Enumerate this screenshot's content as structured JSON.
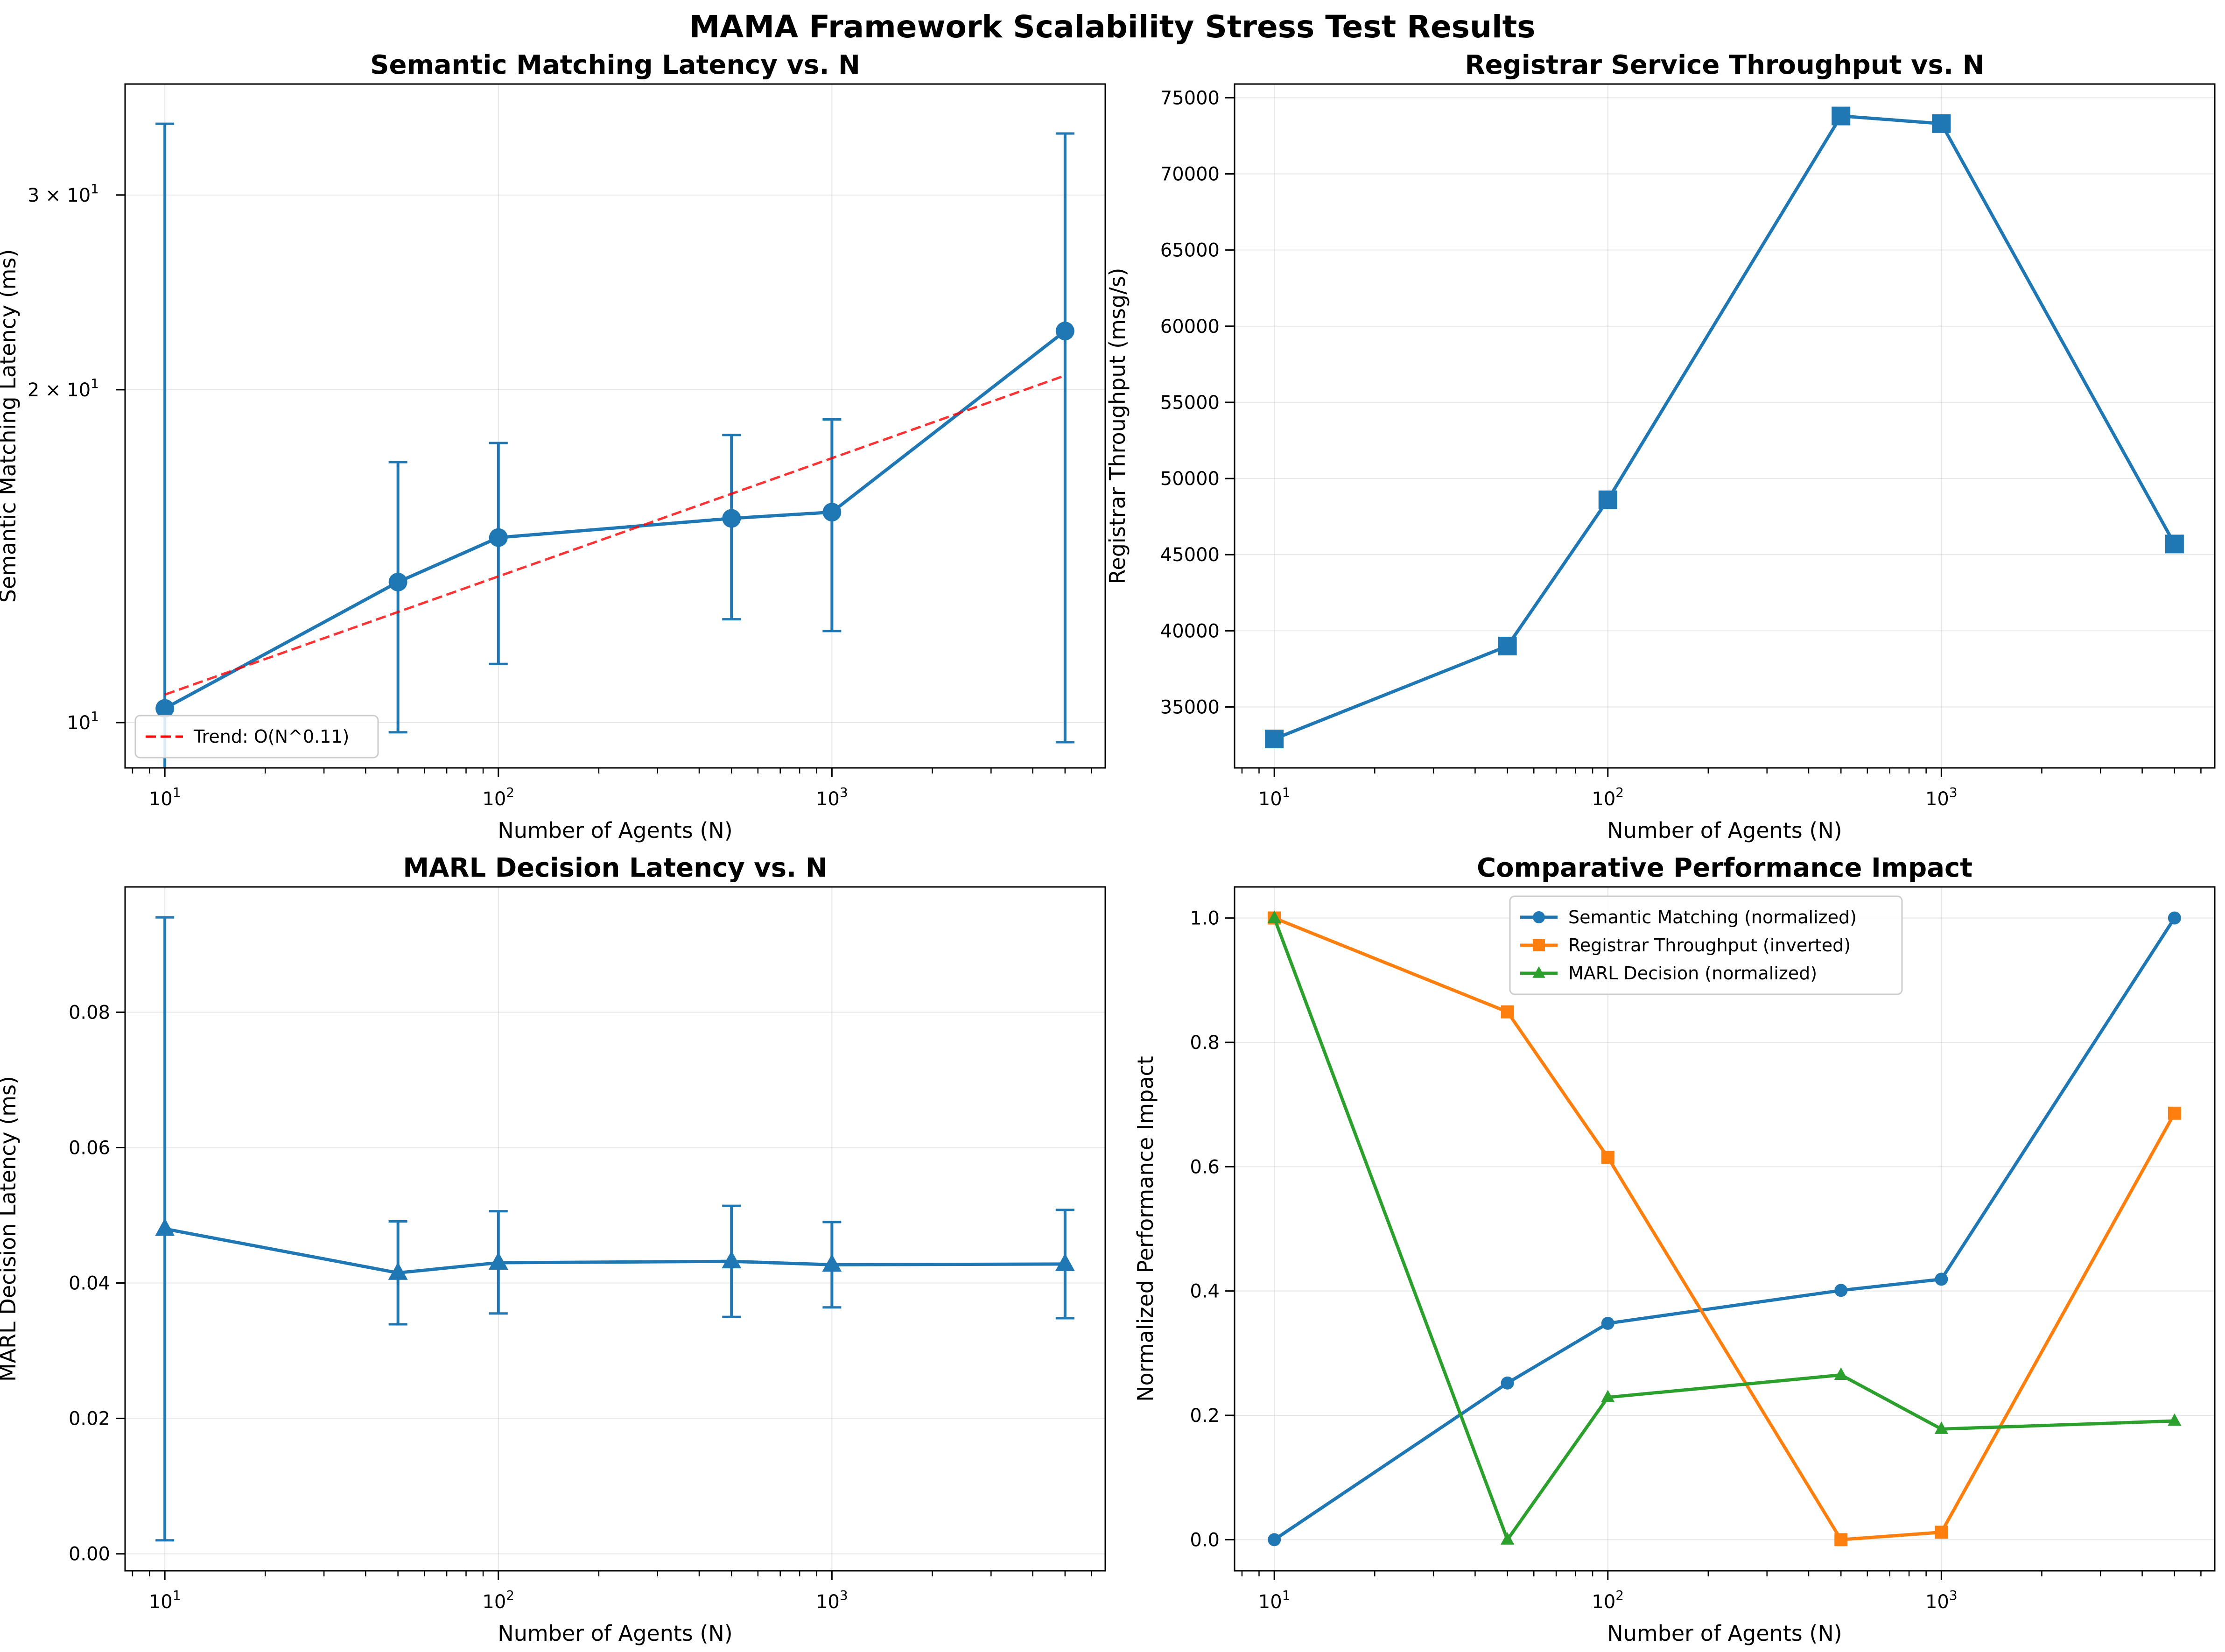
{
  "figure_title": "MAMA Framework Scalability Stress Test Results",
  "chart_data": [
    {
      "id": "p1",
      "type": "line",
      "title": "Semantic Matching Latency vs. N",
      "xlabel": "Number of Agents (N)",
      "ylabel": "Semantic Matching Latency (ms)",
      "xscale": "log",
      "yscale": "log",
      "xlim": [
        7.6,
        6600
      ],
      "ylim": [
        9.1,
        37.8
      ],
      "grid": true,
      "x": [
        10,
        50,
        100,
        500,
        1000,
        5000
      ],
      "series": [
        {
          "name": "",
          "color": "#1f77b4",
          "marker": "circle",
          "values": [
            10.3,
            13.4,
            14.7,
            15.3,
            15.5,
            22.6
          ],
          "err_low": [
            8.7,
            9.8,
            11.3,
            12.4,
            12.1,
            9.6
          ],
          "err_high": [
            34.8,
            17.2,
            17.9,
            18.2,
            18.8,
            34.1
          ]
        },
        {
          "name": "Trend: O(N^0.11)",
          "color": "#ff0000",
          "style": "dashed",
          "x": [
            10,
            5000
          ],
          "values": [
            10.6,
            20.6
          ]
        }
      ],
      "xticks": [
        {
          "v": 10,
          "label": "10",
          "exp": "1"
        },
        {
          "v": 100,
          "label": "10",
          "exp": "2"
        },
        {
          "v": 1000,
          "label": "10",
          "exp": "3"
        }
      ],
      "yticks": [
        {
          "v": 10,
          "label": "10",
          "exp": "1"
        },
        {
          "v": 20,
          "label": "2 × 10",
          "exp": "1"
        },
        {
          "v": 30,
          "label": "3 × 10",
          "exp": "1"
        }
      ],
      "legend": "lower-left"
    },
    {
      "id": "p2",
      "type": "line",
      "title": "Registrar Service Throughput vs. N",
      "xlabel": "Number of Agents (N)",
      "ylabel": "Registrar Throughput (msg/s)",
      "xscale": "log",
      "yscale": "linear",
      "xlim": [
        7.6,
        6600
      ],
      "ylim": [
        31000,
        75900
      ],
      "grid": true,
      "x": [
        10,
        50,
        100,
        500,
        1000,
        5000
      ],
      "series": [
        {
          "name": "",
          "color": "#1f77b4",
          "marker": "square",
          "values": [
            32900,
            39000,
            48600,
            73800,
            73300,
            45700
          ]
        }
      ],
      "xticks": [
        {
          "v": 10,
          "label": "10",
          "exp": "1"
        },
        {
          "v": 100,
          "label": "10",
          "exp": "2"
        },
        {
          "v": 1000,
          "label": "10",
          "exp": "3"
        }
      ],
      "yticks": [
        {
          "v": 35000,
          "label": "35000"
        },
        {
          "v": 40000,
          "label": "40000"
        },
        {
          "v": 45000,
          "label": "45000"
        },
        {
          "v": 50000,
          "label": "50000"
        },
        {
          "v": 55000,
          "label": "55000"
        },
        {
          "v": 60000,
          "label": "60000"
        },
        {
          "v": 65000,
          "label": "65000"
        },
        {
          "v": 70000,
          "label": "70000"
        },
        {
          "v": 75000,
          "label": "75000"
        }
      ]
    },
    {
      "id": "p3",
      "type": "line",
      "title": "MARL Decision Latency vs. N",
      "xlabel": "Number of Agents (N)",
      "ylabel": "MARL Decision Latency (ms)",
      "xscale": "log",
      "yscale": "linear",
      "xlim": [
        7.6,
        6600
      ],
      "ylim": [
        -0.0025,
        0.0985
      ],
      "grid": true,
      "x": [
        10,
        50,
        100,
        500,
        1000,
        5000
      ],
      "series": [
        {
          "name": "",
          "color": "#1f77b4",
          "marker": "triangle",
          "values": [
            0.048,
            0.0415,
            0.043,
            0.0432,
            0.0427,
            0.0428
          ],
          "err_low": [
            0.002,
            0.0339,
            0.0355,
            0.035,
            0.0364,
            0.0348
          ],
          "err_high": [
            0.094,
            0.0491,
            0.0506,
            0.0514,
            0.049,
            0.0508
          ]
        }
      ],
      "xticks": [
        {
          "v": 10,
          "label": "10",
          "exp": "1"
        },
        {
          "v": 100,
          "label": "10",
          "exp": "2"
        },
        {
          "v": 1000,
          "label": "10",
          "exp": "3"
        }
      ],
      "yticks": [
        {
          "v": 0.0,
          "label": "0.00"
        },
        {
          "v": 0.02,
          "label": "0.02"
        },
        {
          "v": 0.04,
          "label": "0.04"
        },
        {
          "v": 0.06,
          "label": "0.06"
        },
        {
          "v": 0.08,
          "label": "0.08"
        }
      ]
    },
    {
      "id": "p4",
      "type": "line",
      "title": "Comparative Performance Impact",
      "xlabel": "Number of Agents (N)",
      "ylabel": "Normalized Performance Impact",
      "xscale": "log",
      "yscale": "linear",
      "xlim": [
        7.6,
        6600
      ],
      "ylim": [
        -0.05,
        1.05
      ],
      "grid": true,
      "x": [
        10,
        50,
        100,
        500,
        1000,
        5000
      ],
      "series": [
        {
          "name": "Semantic Matching (normalized)",
          "color": "#1f77b4",
          "marker": "circle",
          "values": [
            0.0,
            0.252,
            0.348,
            0.401,
            0.419,
            1.0
          ]
        },
        {
          "name": "Registrar Throughput (inverted)",
          "color": "#ff7f0e",
          "marker": "square",
          "values": [
            1.0,
            0.849,
            0.615,
            0.0,
            0.012,
            0.686
          ]
        },
        {
          "name": "MARL Decision (normalized)",
          "color": "#2ca02c",
          "marker": "triangle",
          "values": [
            1.0,
            0.0,
            0.229,
            0.265,
            0.178,
            0.191
          ]
        }
      ],
      "xticks": [
        {
          "v": 10,
          "label": "10",
          "exp": "1"
        },
        {
          "v": 100,
          "label": "10",
          "exp": "2"
        },
        {
          "v": 1000,
          "label": "10",
          "exp": "3"
        }
      ],
      "yticks": [
        {
          "v": 0.0,
          "label": "0.0"
        },
        {
          "v": 0.2,
          "label": "0.2"
        },
        {
          "v": 0.4,
          "label": "0.4"
        },
        {
          "v": 0.6,
          "label": "0.6"
        },
        {
          "v": 0.8,
          "label": "0.8"
        },
        {
          "v": 1.0,
          "label": "1.0"
        }
      ],
      "legend": "upper-center"
    }
  ]
}
